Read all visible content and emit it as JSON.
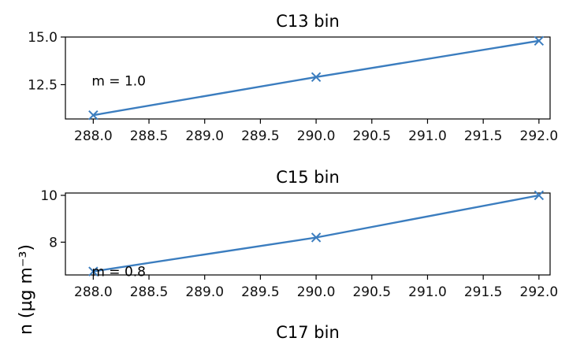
{
  "ylabel_fragment": "n (µg m⁻³)",
  "colors": {
    "series": "#3b7dbf"
  },
  "chart_data": [
    {
      "type": "line",
      "title": "C13 bin",
      "x": [
        288.0,
        290.0,
        292.0
      ],
      "series": [
        {
          "values": [
            10.9,
            12.9,
            14.8
          ]
        }
      ],
      "marker": "x",
      "xlim": [
        287.75,
        292.1
      ],
      "ylim": [
        10.7,
        15.0
      ],
      "xticks": [
        "288.0",
        "288.5",
        "289.0",
        "289.5",
        "290.0",
        "290.5",
        "291.0",
        "291.5",
        "292.0"
      ],
      "yticks": [
        "12.5",
        "15.0"
      ],
      "annotation": {
        "text": "m = 1.0",
        "x": 288.0,
        "y": 12.7
      },
      "grid": false
    },
    {
      "type": "line",
      "title": "C15 bin",
      "x": [
        288.0,
        290.0,
        292.0
      ],
      "series": [
        {
          "values": [
            6.75,
            8.2,
            10.0
          ]
        }
      ],
      "marker": "x",
      "xlim": [
        287.75,
        292.1
      ],
      "ylim": [
        6.6,
        10.1
      ],
      "xticks": [
        "288.0",
        "288.5",
        "289.0",
        "289.5",
        "290.0",
        "290.5",
        "291.0",
        "291.5",
        "292.0"
      ],
      "yticks": [
        "8",
        "10"
      ],
      "annotation": {
        "text": "m = 0.8",
        "x": 288.0,
        "y": 6.75
      },
      "grid": false
    },
    {
      "type": "line",
      "title": "C17 bin",
      "series": [],
      "grid": false
    }
  ]
}
